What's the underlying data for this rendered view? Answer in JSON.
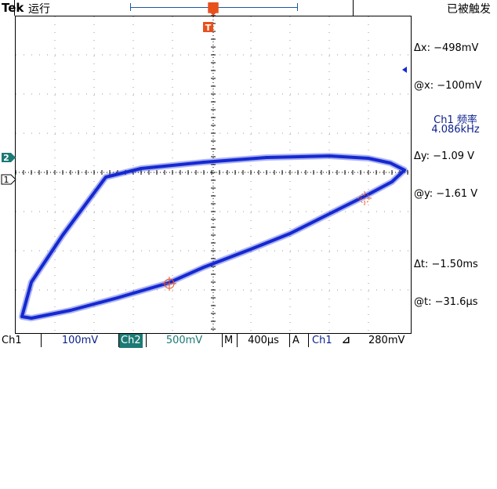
{
  "top_bar": {
    "brand": "Tek",
    "run_state": "运行",
    "trigger_status": "已被触发"
  },
  "cursor_readout": {
    "delta_x": "Δx: −498mV",
    "at_x": "@x: −100mV",
    "delta_y": "Δy: −1.09 V",
    "at_y": "@y: −1.61 V",
    "delta_t": "Δt: −1.50ms",
    "at_t": "@t: −31.6µs"
  },
  "measurement": {
    "label": "Ch1 频率",
    "value": "4.086kHz"
  },
  "channel_markers": {
    "ch2": "2",
    "ch1": "1",
    "trigger": "T"
  },
  "bottom_bar": {
    "ch1_tag": "Ch1",
    "ch1_scale": "100mV",
    "ch2_tag": "Ch2",
    "ch2_scale": "500mV",
    "timebase_label": "M",
    "timebase_value": "400µs",
    "trigger_mode": "A",
    "trigger_source": "Ch1",
    "trigger_slope_icon": "rising-edge-icon",
    "trigger_level": "280mV"
  },
  "colors": {
    "trace": "#1428d2",
    "ch2": "#1b7a74",
    "trigger_marker": "#e8501c",
    "readout_text": "#0a1e8c"
  }
}
